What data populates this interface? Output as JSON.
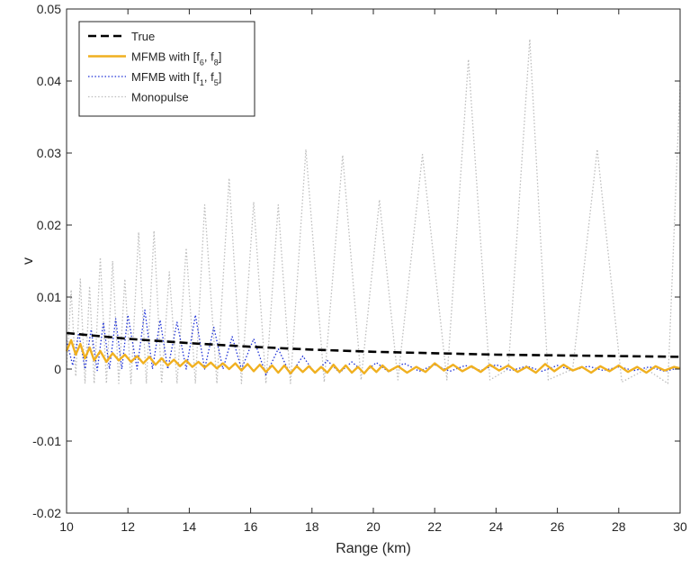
{
  "chart_data": {
    "type": "line",
    "title": "",
    "xlabel": "Range (km)",
    "ylabel": "v",
    "xlim": [
      10,
      30
    ],
    "ylim": [
      -0.02,
      0.05
    ],
    "xticks": [
      "10",
      "12",
      "14",
      "16",
      "18",
      "20",
      "22",
      "24",
      "26",
      "28",
      "30"
    ],
    "yticks": [
      "-0.02",
      "-0.01",
      "0",
      "0.01",
      "0.02",
      "0.03",
      "0.04",
      "0.05"
    ],
    "grid": false,
    "legend_position": "top-left",
    "series": [
      {
        "name": "True",
        "color": "#000000",
        "style": "dashed",
        "x": [
          10,
          12,
          14,
          16,
          18,
          20,
          22,
          24,
          26,
          28,
          30
        ],
        "y": [
          0.005,
          0.0042,
          0.0036,
          0.0031,
          0.0027,
          0.0024,
          0.0022,
          0.002,
          0.0019,
          0.0018,
          0.0017
        ]
      },
      {
        "name": "MFMB with [f6, f8]",
        "legend_parts": [
          "MFMB with [f",
          "6",
          ", f",
          "8",
          "]"
        ],
        "color": "#f0b020",
        "style": "solid",
        "x": [
          10,
          10.15,
          10.3,
          10.45,
          10.6,
          10.75,
          10.9,
          11.1,
          11.3,
          11.5,
          11.7,
          11.9,
          12.1,
          12.3,
          12.5,
          12.7,
          12.9,
          13.1,
          13.3,
          13.5,
          13.7,
          13.9,
          14.1,
          14.3,
          14.5,
          14.7,
          14.9,
          15.1,
          15.3,
          15.5,
          15.7,
          15.9,
          16.1,
          16.3,
          16.5,
          16.7,
          16.9,
          17.1,
          17.3,
          17.5,
          17.7,
          17.9,
          18.1,
          18.3,
          18.5,
          18.7,
          18.9,
          19.1,
          19.3,
          19.5,
          19.7,
          19.9,
          20.1,
          20.3,
          20.5,
          20.8,
          21.1,
          21.4,
          21.7,
          22.0,
          22.3,
          22.6,
          22.9,
          23.2,
          23.5,
          23.8,
          24.1,
          24.4,
          24.7,
          25.0,
          25.3,
          25.6,
          25.9,
          26.2,
          26.5,
          26.8,
          27.1,
          27.4,
          27.7,
          28.0,
          28.3,
          28.6,
          28.9,
          29.2,
          29.5,
          29.8,
          30.0
        ],
        "y": [
          0.0025,
          0.004,
          0.002,
          0.0035,
          0.0015,
          0.003,
          0.0012,
          0.0025,
          0.001,
          0.0022,
          0.0012,
          0.002,
          0.001,
          0.0018,
          0.0008,
          0.0017,
          0.0006,
          0.0015,
          0.0005,
          0.0013,
          0.0004,
          0.0012,
          0.0003,
          0.001,
          0.0002,
          0.0009,
          0.0001,
          0.0008,
          0.0,
          0.0008,
          -0.0002,
          0.0007,
          -0.0003,
          0.0006,
          -0.0004,
          0.0005,
          -0.0005,
          0.0005,
          -0.0006,
          0.0004,
          -0.0004,
          0.0004,
          -0.0005,
          0.0003,
          -0.0005,
          0.0006,
          -0.0004,
          0.0005,
          -0.0005,
          0.0003,
          -0.0006,
          0.0004,
          -0.0004,
          0.0005,
          -0.0003,
          0.0004,
          -0.0005,
          0.0003,
          -0.0004,
          0.0008,
          -0.0002,
          0.0006,
          -0.0003,
          0.0004,
          -0.0004,
          0.0006,
          -0.0002,
          0.0005,
          -0.0004,
          0.0003,
          -0.0005,
          0.0007,
          -0.0003,
          0.0006,
          -0.0002,
          0.0003,
          -0.0005,
          0.0004,
          -0.0003,
          0.0005,
          -0.0004,
          0.0003,
          -0.0005,
          0.0004,
          -0.0002,
          0.0003,
          0.0001
        ]
      },
      {
        "name": "MFMB with [f1, f5]",
        "legend_parts": [
          "MFMB with [f",
          "1",
          ", f",
          "5",
          "]"
        ],
        "color": "#1c2fd6",
        "style": "dotted",
        "x": [
          10,
          10.2,
          10.4,
          10.6,
          10.8,
          11.0,
          11.2,
          11.4,
          11.6,
          11.8,
          12.0,
          12.3,
          12.55,
          12.8,
          13.05,
          13.3,
          13.6,
          13.9,
          14.2,
          14.5,
          14.8,
          15.1,
          15.4,
          15.7,
          16.1,
          16.5,
          16.9,
          17.3,
          17.7,
          18.1,
          18.5,
          18.9,
          19.3,
          19.7,
          20.1,
          20.5,
          21.0,
          21.5,
          22.0,
          22.5,
          23.0,
          23.5,
          24.0,
          24.5,
          25.0,
          25.5,
          26.0,
          26.5,
          27.0,
          27.5,
          28.0,
          28.5,
          29.0,
          29.5,
          30.0
        ],
        "y": [
          0.004,
          0.0005,
          0.005,
          0.0,
          0.0055,
          -0.0002,
          0.0065,
          0.0,
          0.007,
          0.0,
          0.0075,
          0.0,
          0.0082,
          0.0,
          0.0068,
          0.0,
          0.0065,
          0.0,
          0.0075,
          0.0,
          0.0058,
          0.0,
          0.0045,
          0.0,
          0.0042,
          -0.0008,
          0.0028,
          -0.0008,
          0.0018,
          -0.0006,
          0.0012,
          -0.0005,
          0.001,
          -0.0005,
          0.0009,
          -0.0004,
          0.0008,
          -0.0003,
          0.0006,
          -0.0003,
          0.0005,
          -0.0002,
          0.0006,
          -0.0002,
          0.0004,
          -0.0003,
          0.0005,
          -0.0002,
          0.0004,
          -0.0002,
          0.0003,
          -0.0002,
          0.0003,
          -0.0003,
          0.0002
        ]
      },
      {
        "name": "Monopulse",
        "color": "#bdbdbd",
        "style": "dotted",
        "x": [
          10,
          10.15,
          10.3,
          10.45,
          10.6,
          10.75,
          10.9,
          11.1,
          11.3,
          11.5,
          11.7,
          11.9,
          12.1,
          12.35,
          12.6,
          12.85,
          13.1,
          13.35,
          13.6,
          13.9,
          14.2,
          14.5,
          14.9,
          15.3,
          15.7,
          16.1,
          16.5,
          16.9,
          17.3,
          17.8,
          18.4,
          19.0,
          19.6,
          20.2,
          20.8,
          21.6,
          22.4,
          23.1,
          23.8,
          24.4,
          25.1,
          25.7,
          26.5,
          27.3,
          28.1,
          28.9,
          29.6,
          30.0
        ],
        "y": [
          0.0,
          0.011,
          -0.001,
          0.0125,
          -0.002,
          0.0115,
          -0.002,
          0.0155,
          -0.002,
          0.015,
          -0.002,
          0.0125,
          -0.002,
          0.019,
          -0.002,
          0.0192,
          -0.002,
          0.0135,
          -0.002,
          0.0168,
          -0.002,
          0.0228,
          -0.002,
          0.0265,
          -0.002,
          0.0232,
          -0.002,
          0.0228,
          -0.002,
          0.0305,
          -0.0018,
          0.0297,
          -0.0015,
          0.0235,
          -0.0015,
          0.0298,
          -0.0015,
          0.043,
          -0.0015,
          0.0,
          0.0458,
          -0.0015,
          0.0,
          0.0305,
          -0.0018,
          0.0,
          -0.002,
          0.0395
        ]
      }
    ]
  }
}
